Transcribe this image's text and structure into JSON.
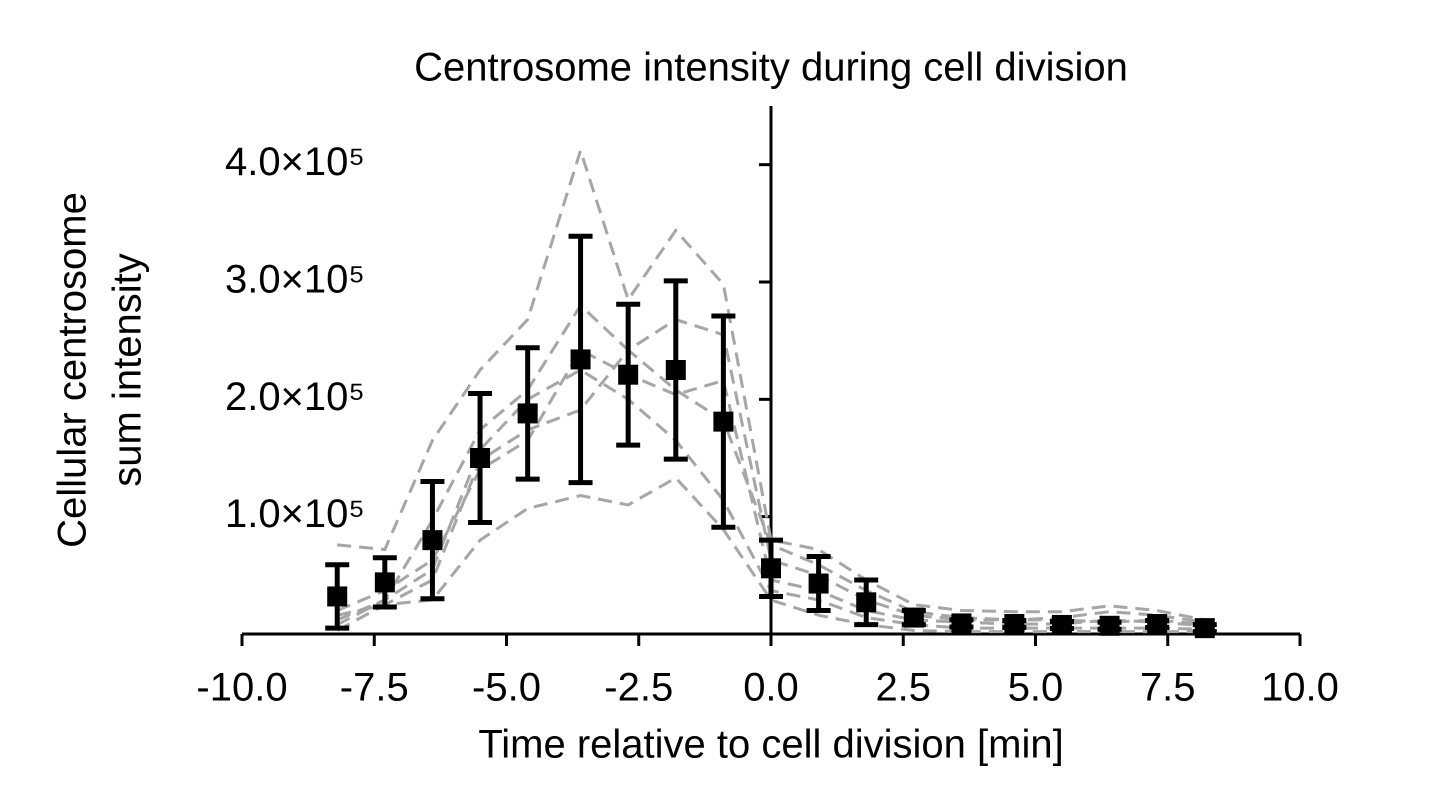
{
  "chart_data": {
    "type": "errorbar",
    "title": "Centrosome intensity during cell division",
    "xlabel": "Time relative to cell division [min]",
    "ylabel": [
      "Cellular centrosome",
      "sum intensity"
    ],
    "x": [
      -8.2,
      -7.3,
      -6.4,
      -5.5,
      -4.6,
      -3.6,
      -2.7,
      -1.8,
      -0.9,
      0,
      0.9,
      1.8,
      2.7,
      3.6,
      4.6,
      5.5,
      6.4,
      7.3,
      8.2
    ],
    "series": [
      {
        "color": "#000000",
        "values": [
          32000,
          44000,
          80000,
          150000,
          188000,
          234000,
          221000,
          225000,
          181000,
          56000,
          43000,
          27000,
          14000,
          9000,
          8500,
          7700,
          7000,
          8500,
          5000
        ],
        "errors": [
          27000,
          21000,
          50000,
          55000,
          56000,
          105000,
          60000,
          76000,
          90000,
          24000,
          23000,
          19000,
          6000,
          3000,
          3000,
          3000,
          3000,
          3000,
          3000
        ]
      }
    ],
    "traces": {
      "color": "#a6a6a6",
      "values": [
        [
          76000,
          72000,
          165000,
          225000,
          268000,
          412000,
          285000,
          344000,
          298000,
          80000,
          72000,
          46000,
          25000,
          20000,
          19000,
          19000,
          24000,
          20000,
          12000
        ],
        [
          3000,
          25000,
          29000,
          80000,
          107000,
          118000,
          110000,
          133000,
          89000,
          29000,
          16000,
          8000,
          3000,
          2000,
          2000,
          2000,
          2000,
          2000,
          2000
        ],
        [
          12000,
          29000,
          97000,
          174000,
          208000,
          280000,
          242000,
          268000,
          255000,
          63000,
          50000,
          29000,
          16000,
          12000,
          12000,
          12000,
          10000,
          12000,
          8000
        ],
        [
          20000,
          37000,
          63000,
          140000,
          165000,
          242000,
          221000,
          204000,
          216000,
          46000,
          37000,
          20000,
          12000,
          10000,
          8500,
          8500,
          12000,
          10000,
          7000
        ],
        [
          8000,
          29000,
          55000,
          157000,
          200000,
          225000,
          200000,
          165000,
          114000,
          37000,
          29000,
          14000,
          8000,
          5000,
          5000,
          5000,
          5000,
          5000,
          4000
        ],
        [
          16000,
          25000,
          46000,
          148000,
          174000,
          191000,
          242000,
          208000,
          182000,
          76000,
          59000,
          37000,
          19000,
          14000,
          12000,
          14000,
          19000,
          16000,
          10000
        ]
      ]
    },
    "xlim": [
      -10,
      10
    ],
    "xticks": [
      {
        "value": -10,
        "label": "-10.0"
      },
      {
        "value": -7.5,
        "label": "-7.5"
      },
      {
        "value": -5,
        "label": "-5.0"
      },
      {
        "value": -2.5,
        "label": "-2.5"
      },
      {
        "value": 0,
        "label": "0.0"
      },
      {
        "value": 2.5,
        "label": "2.5"
      },
      {
        "value": 5,
        "label": "5.0"
      },
      {
        "value": 7.5,
        "label": "7.5"
      },
      {
        "value": 10,
        "label": "10.0"
      }
    ],
    "ylim": [
      0,
      450000
    ],
    "yticks": [
      {
        "value": 100000,
        "label": "1.0×10⁵"
      },
      {
        "value": 200000,
        "label": "2.0×10⁵"
      },
      {
        "value": 300000,
        "label": "3.0×10⁵"
      },
      {
        "value": 400000,
        "label": "4.0×10⁵"
      }
    ]
  }
}
